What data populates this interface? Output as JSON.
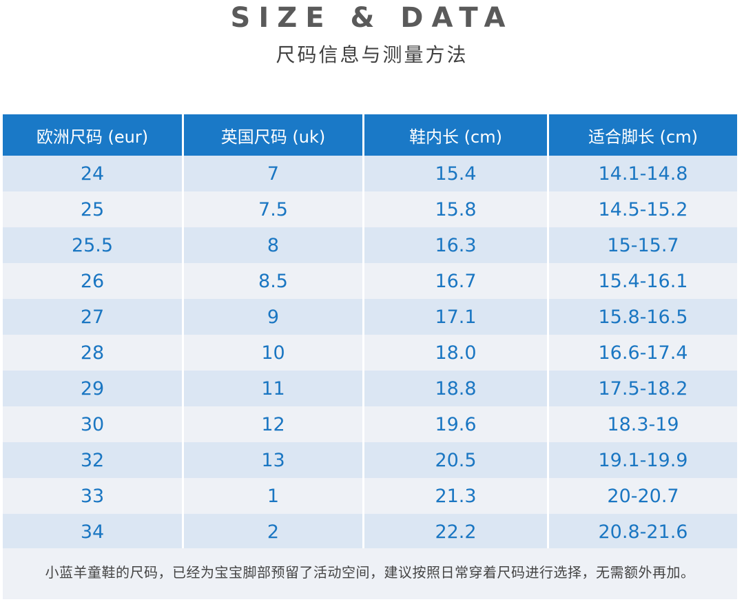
{
  "header": {
    "title": "SIZE & DATA",
    "subtitle": "尺码信息与测量方法"
  },
  "table": {
    "columns": [
      "欧洲尺码 (eur)",
      "英国尺码 (uk)",
      "鞋内长 (cm)",
      "适合脚长 (cm)"
    ],
    "rows": [
      [
        "24",
        "7",
        "15.4",
        "14.1-14.8"
      ],
      [
        "25",
        "7.5",
        "15.8",
        "14.5-15.2"
      ],
      [
        "25.5",
        "8",
        "16.3",
        "15-15.7"
      ],
      [
        "26",
        "8.5",
        "16.7",
        "15.4-16.1"
      ],
      [
        "27",
        "9",
        "17.1",
        "15.8-16.5"
      ],
      [
        "28",
        "10",
        "18.0",
        "16.6-17.4"
      ],
      [
        "29",
        "11",
        "18.8",
        "17.5-18.2"
      ],
      [
        "30",
        "12",
        "19.6",
        "18.3-19"
      ],
      [
        "32",
        "13",
        "20.5",
        "19.1-19.9"
      ],
      [
        "33",
        "1",
        "21.3",
        "20-20.7"
      ],
      [
        "34",
        "2",
        "22.2",
        "20.8-21.6"
      ]
    ]
  },
  "note": "小蓝羊童鞋的尺码，已经为宝宝脚部预留了活动空间，建议按照日常穿着尺码进行选择，无需额外再加。",
  "colors": {
    "header_bg": "#1a79c7",
    "value_text": "#1a76c2",
    "row_stripe": "#dbe6f3",
    "row_alt": "#eef1f6"
  }
}
